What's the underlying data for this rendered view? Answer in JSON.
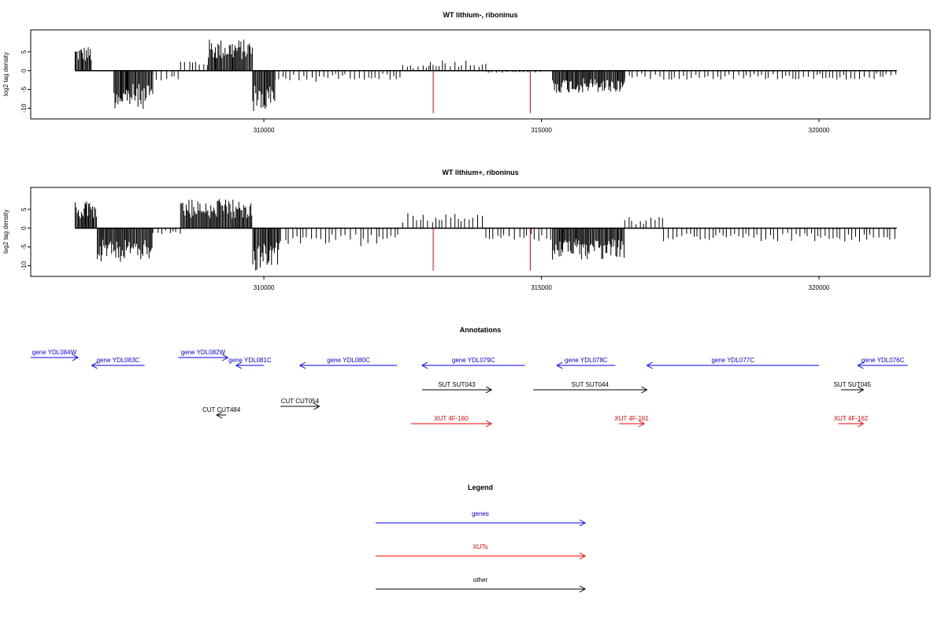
{
  "colors": {
    "genes": "#0000ff",
    "xuts": "#ff0000",
    "other": "#000000",
    "marker": "#ff0000",
    "signal": "#000000"
  },
  "chart_data": [
    {
      "type": "bar",
      "title": "WT lithium-, riboninus",
      "ylabel": "log2 tag density",
      "xlim": [
        305800,
        322000
      ],
      "ylim": [
        -12,
        10
      ],
      "xticks": [
        310000,
        315000,
        320000
      ],
      "yticks": [
        5,
        0,
        -5,
        -10
      ],
      "markers_x": [
        313050,
        314800
      ],
      "data_range": [
        306600,
        321400
      ],
      "segments": [
        {
          "start": 306600,
          "end": 306900,
          "value": 5.5
        },
        {
          "start": 307300,
          "end": 308000,
          "value": -8.5
        },
        {
          "start": 308000,
          "end": 308500,
          "value": -2.5
        },
        {
          "start": 308500,
          "end": 309000,
          "value": 2.5
        },
        {
          "start": 309000,
          "end": 309800,
          "value": 7.0
        },
        {
          "start": 309800,
          "end": 310200,
          "value": -9.5
        },
        {
          "start": 310200,
          "end": 311000,
          "value": -2.5
        },
        {
          "start": 311000,
          "end": 312500,
          "value": -2.0
        },
        {
          "start": 312500,
          "end": 313000,
          "value": 1.5
        },
        {
          "start": 313000,
          "end": 314000,
          "value": 2.5
        },
        {
          "start": 314000,
          "end": 315000,
          "value": -0.5
        },
        {
          "start": 315200,
          "end": 316500,
          "value": -5.0
        },
        {
          "start": 316500,
          "end": 318000,
          "value": -2.0
        },
        {
          "start": 318000,
          "end": 321400,
          "value": -2.0
        }
      ]
    },
    {
      "type": "bar",
      "title": "WT lithium+, riboninus",
      "ylabel": "log2 tag density",
      "xlim": [
        305800,
        322000
      ],
      "ylim": [
        -12,
        10
      ],
      "xticks": [
        310000,
        315000,
        320000
      ],
      "yticks": [
        5,
        0,
        -5,
        -10
      ],
      "markers_x": [
        313050,
        314800
      ],
      "data_range": [
        306600,
        321400
      ],
      "segments": [
        {
          "start": 306600,
          "end": 307000,
          "value": 6.0
        },
        {
          "start": 307000,
          "end": 308000,
          "value": -7.5
        },
        {
          "start": 308000,
          "end": 308500,
          "value": -1.5
        },
        {
          "start": 308500,
          "end": 309800,
          "value": 6.5
        },
        {
          "start": 309800,
          "end": 310300,
          "value": -9.5
        },
        {
          "start": 310300,
          "end": 312500,
          "value": -4.0
        },
        {
          "start": 312500,
          "end": 314000,
          "value": 3.5
        },
        {
          "start": 314000,
          "end": 315200,
          "value": -3.0
        },
        {
          "start": 315200,
          "end": 316500,
          "value": -7.0
        },
        {
          "start": 316500,
          "end": 317200,
          "value": 2.5
        },
        {
          "start": 317200,
          "end": 321400,
          "value": -3.0
        }
      ]
    }
  ],
  "annotations": {
    "title": "Annotations",
    "xlim": [
      305800,
      322000
    ],
    "features": [
      {
        "label": "gene YDL084W",
        "start": 306600,
        "end": 306650,
        "x_min": 305800,
        "x_max": 306650,
        "dir": "right",
        "type": "genes",
        "row": 0
      },
      {
        "label": "gene YDL083C",
        "start": 306900,
        "end": 307850,
        "dir": "left",
        "type": "genes",
        "row": 1
      },
      {
        "label": "gene YDL082W",
        "start": 308460,
        "end": 309350,
        "dir": "right",
        "type": "genes",
        "row": 0
      },
      {
        "label": "gene YDL081C",
        "start": 309500,
        "end": 310000,
        "dir": "left",
        "type": "genes",
        "row": 1
      },
      {
        "label": "gene YDL080C",
        "start": 310650,
        "end": 312400,
        "dir": "left",
        "type": "genes",
        "row": 1
      },
      {
        "label": "gene YDL079C",
        "start": 312850,
        "end": 314700,
        "dir": "left",
        "type": "genes",
        "row": 1
      },
      {
        "label": "gene YDL078C",
        "start": 315280,
        "end": 316330,
        "dir": "left",
        "type": "genes",
        "row": 1
      },
      {
        "label": "gene YDL077C",
        "start": 316900,
        "end": 320000,
        "dir": "left",
        "type": "genes",
        "row": 1
      },
      {
        "label": "gene YDL076C",
        "start": 320700,
        "end": 321600,
        "dir": "left",
        "type": "genes",
        "row": 1
      },
      {
        "label": "SUT SUT043",
        "start": 312850,
        "end": 314100,
        "dir": "right",
        "type": "other",
        "row": 2
      },
      {
        "label": "SUT SUT044",
        "start": 314850,
        "end": 316900,
        "dir": "right",
        "type": "other",
        "row": 2
      },
      {
        "label": "SUT SUT045",
        "start": 320400,
        "end": 320800,
        "dir": "right",
        "type": "other",
        "row": 2
      },
      {
        "label": "CUT CUT484",
        "start": 309150,
        "end": 309300,
        "dir": "left",
        "type": "other",
        "row": 3
      },
      {
        "label": "CUT CUT054",
        "start": 310300,
        "end": 311000,
        "dir": "right",
        "type": "other",
        "row": 4
      },
      {
        "label": "XUT 4F-160",
        "start": 312650,
        "end": 314100,
        "dir": "right",
        "type": "xuts",
        "row": 5
      },
      {
        "label": "XUT 4F-161",
        "start": 316400,
        "end": 316850,
        "dir": "right",
        "type": "xuts",
        "row": 5
      },
      {
        "label": "XUT 4F-162",
        "start": 320350,
        "end": 320800,
        "dir": "right",
        "type": "xuts",
        "row": 5
      }
    ]
  },
  "legend": {
    "title": "Legend",
    "entries": [
      {
        "label": "genes",
        "type": "genes"
      },
      {
        "label": "XUTs",
        "type": "xuts"
      },
      {
        "label": "other",
        "type": "other"
      }
    ]
  }
}
